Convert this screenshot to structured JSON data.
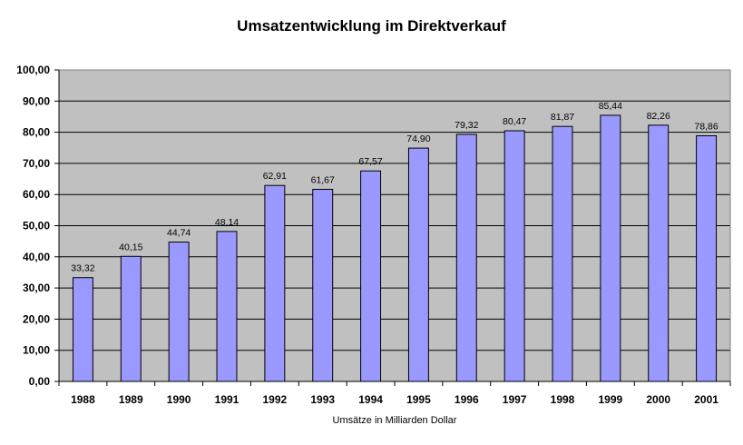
{
  "chart_data": {
    "type": "bar",
    "title": "Umsatzentwicklung im Direktverkauf",
    "xlabel": "Umsätze in Milliarden Dollar",
    "ylabel": "",
    "categories": [
      "1988",
      "1989",
      "1990",
      "1991",
      "1992",
      "1993",
      "1994",
      "1995",
      "1996",
      "1997",
      "1998",
      "1999",
      "2000",
      "2001"
    ],
    "values": [
      33.32,
      40.15,
      44.74,
      48.14,
      62.91,
      61.67,
      67.57,
      74.9,
      79.32,
      80.47,
      81.87,
      85.44,
      82.26,
      78.86
    ],
    "value_labels": [
      "33,32",
      "40,15",
      "44,74",
      "48,14",
      "62,91",
      "61,67",
      "67,57",
      "74,90",
      "79,32",
      "80,47",
      "81,87",
      "85,44",
      "82,26",
      "78,86"
    ],
    "ylim": [
      0,
      100
    ],
    "yticks": [
      0,
      10,
      20,
      30,
      40,
      50,
      60,
      70,
      80,
      90,
      100
    ],
    "ytick_labels": [
      "0,00",
      "10,00",
      "20,00",
      "30,00",
      "40,00",
      "50,00",
      "60,00",
      "70,00",
      "80,00",
      "90,00",
      "100,00"
    ],
    "grid": true,
    "legend": "none",
    "colors": {
      "bar_fill": "#9999ff",
      "bar_stroke": "#000000",
      "plot_bg": "#c0c0c0",
      "gridline": "#000000"
    }
  }
}
